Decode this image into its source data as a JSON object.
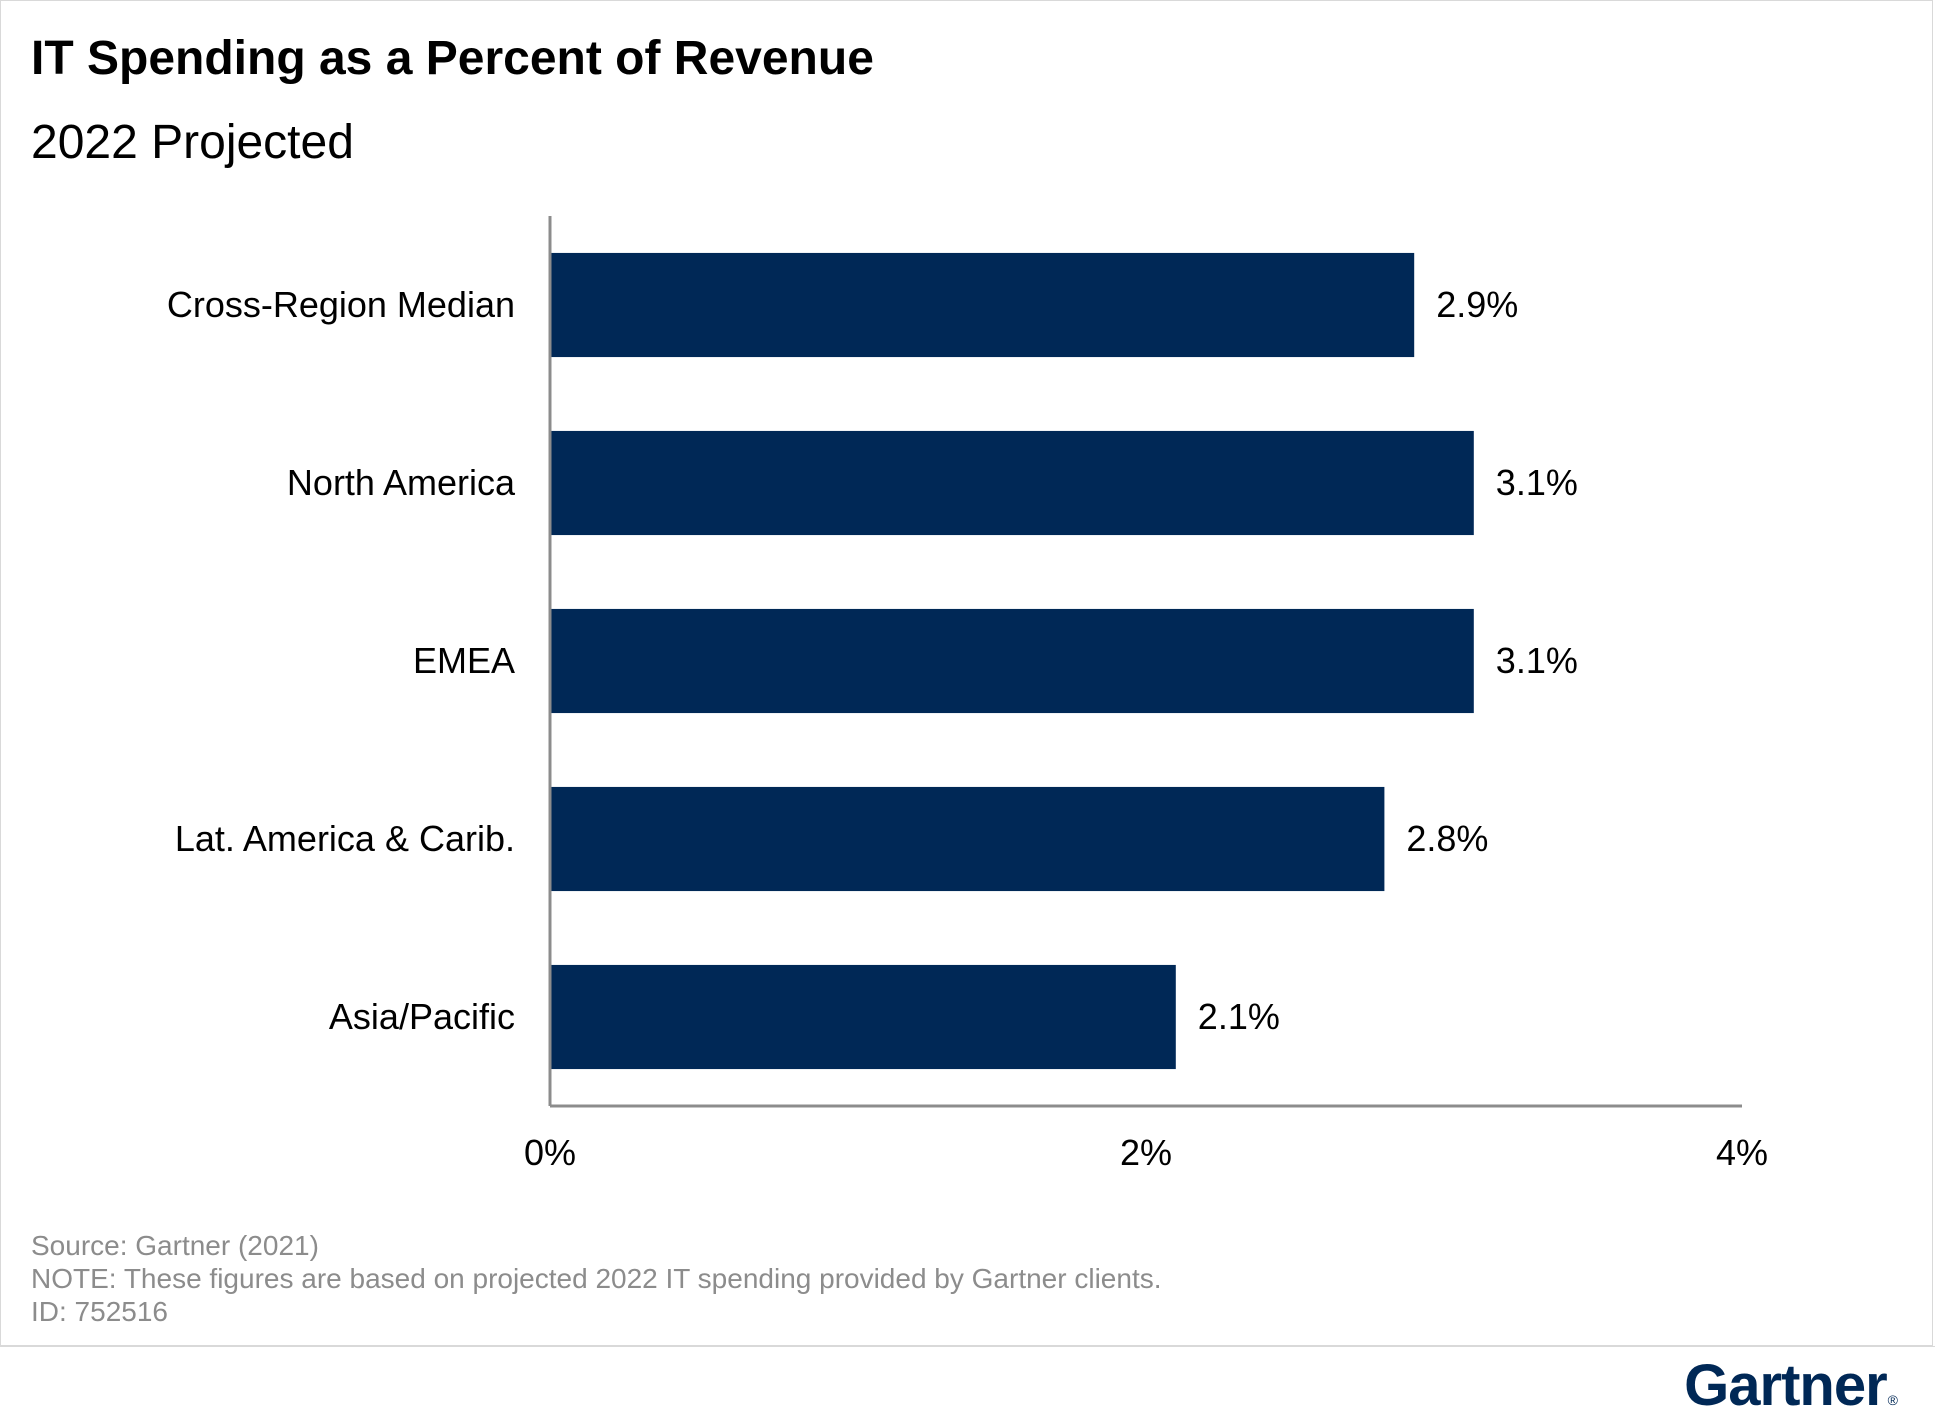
{
  "header": {
    "title": "IT Spending as a Percent of Revenue",
    "subtitle": "2022 Projected"
  },
  "chart_data": {
    "type": "bar",
    "orientation": "horizontal",
    "title": "IT Spending as a Percent of Revenue",
    "subtitle": "2022 Projected",
    "categories": [
      "Cross-Region Median",
      "North America",
      "EMEA",
      "Lat. America & Carib.",
      "Asia/Pacific"
    ],
    "values": [
      2.9,
      3.1,
      3.1,
      2.8,
      2.1
    ],
    "data_labels": [
      "2.9%",
      "3.1%",
      "3.1%",
      "2.8%",
      "2.1%"
    ],
    "xlim": [
      0,
      4
    ],
    "x_ticks": [
      0,
      2,
      4
    ],
    "x_tick_labels": [
      "0%",
      "2%",
      "4%"
    ],
    "grid": false,
    "legend": "none",
    "bar_color": "#002856"
  },
  "footnotes": {
    "source": "Source: Gartner (2021)",
    "note": "NOTE: These figures are based on projected 2022 IT spending provided by Gartner clients.",
    "id": "ID: 752516"
  },
  "logo": {
    "text": "Gartner",
    "mark": "®",
    "color": "#002856"
  }
}
